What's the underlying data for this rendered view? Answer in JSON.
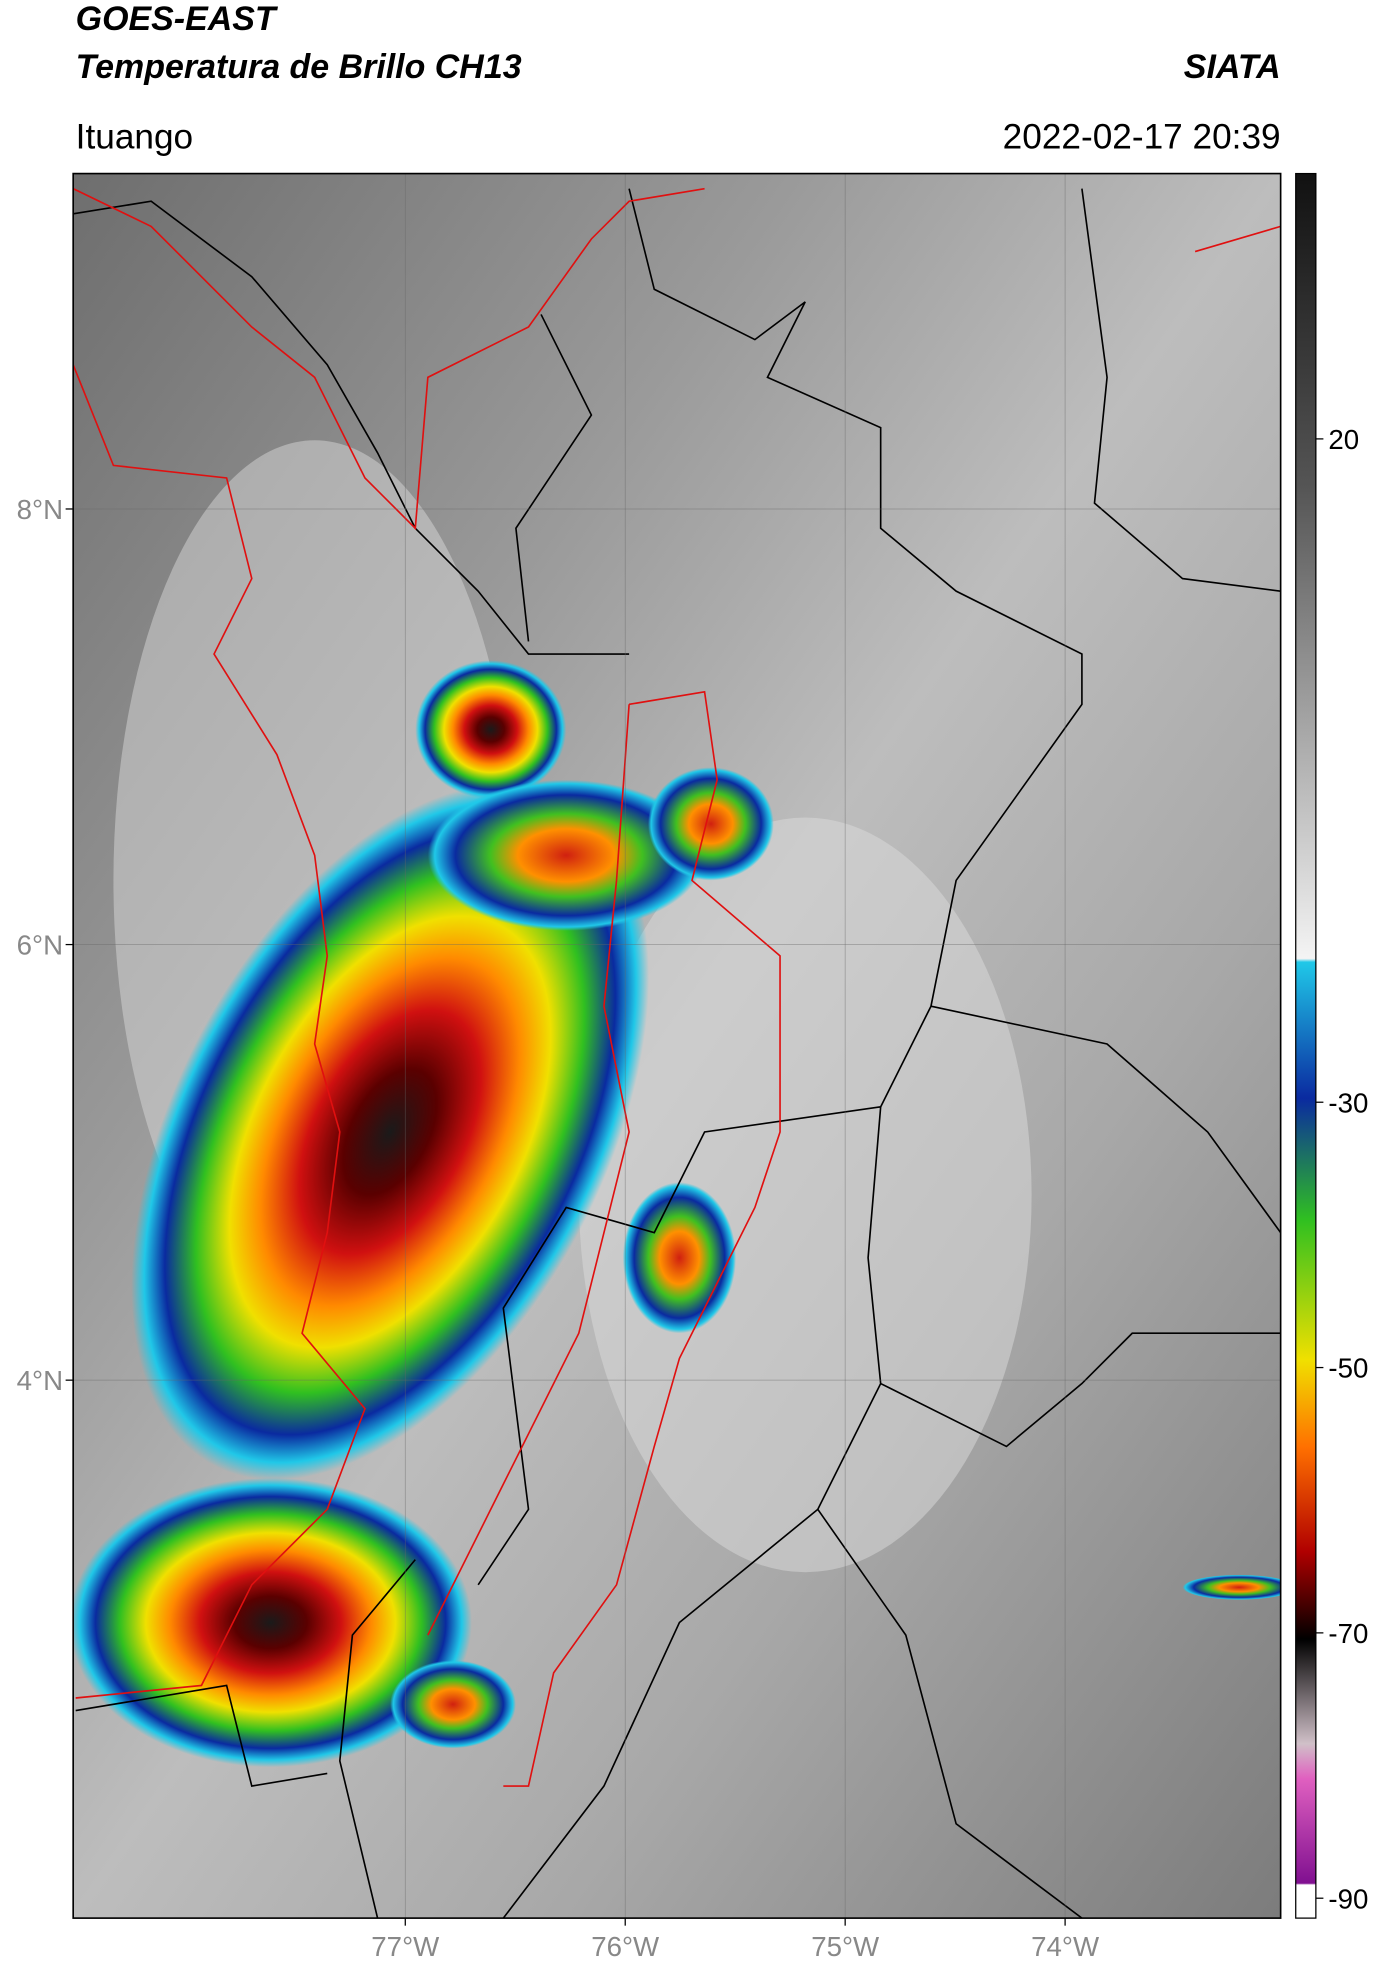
{
  "header": {
    "title": "GOES-EAST",
    "subtitle": "Temperatura de Brillo CH13",
    "source": "SIATA",
    "location": "Ituango",
    "datetime": "2022-02-17 20:39"
  },
  "map": {
    "xlim": [
      -78.51,
      -73.02
    ],
    "ylim": [
      1.53,
      9.54
    ],
    "xticks": [
      {
        "value": -77,
        "label": "77°W"
      },
      {
        "value": -76,
        "label": "76°W"
      },
      {
        "value": -75,
        "label": "75°W"
      },
      {
        "value": -74,
        "label": "74°W"
      }
    ],
    "yticks": [
      {
        "value": 8,
        "label": "8°N"
      },
      {
        "value": 6,
        "label": "6°N"
      },
      {
        "value": 4,
        "label": "4°N"
      }
    ],
    "grid": true
  },
  "colorbar": {
    "ylim": [
      -91.5,
      40
    ],
    "yticks": [
      20,
      -30,
      -50,
      -70,
      -90
    ]
  }
}
